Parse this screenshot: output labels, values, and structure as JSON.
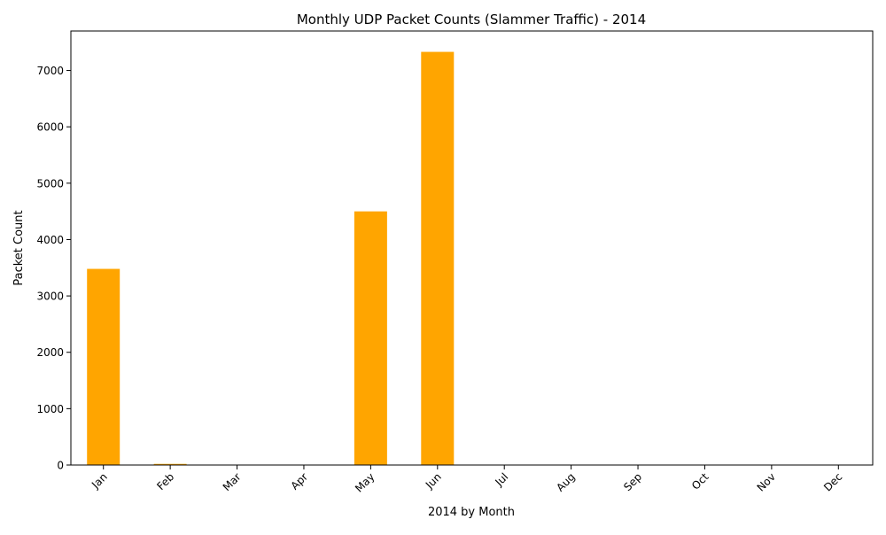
{
  "chart_data": {
    "type": "bar",
    "title": "Monthly UDP Packet Counts (Slammer Traffic) - 2014",
    "xlabel": "2014 by Month",
    "ylabel": "Packet Count",
    "categories": [
      "Jan",
      "Feb",
      "Mar",
      "Apr",
      "May",
      "Jun",
      "Jul",
      "Aug",
      "Sep",
      "Oct",
      "Nov",
      "Dec"
    ],
    "values": [
      3480,
      20,
      0,
      0,
      4500,
      7330,
      0,
      0,
      0,
      0,
      0,
      0
    ],
    "ylim": [
      0,
      7700
    ],
    "yticks": [
      0,
      1000,
      2000,
      3000,
      4000,
      5000,
      6000,
      7000
    ],
    "bar_color": "#ffa500",
    "grid": false,
    "legend": false
  }
}
